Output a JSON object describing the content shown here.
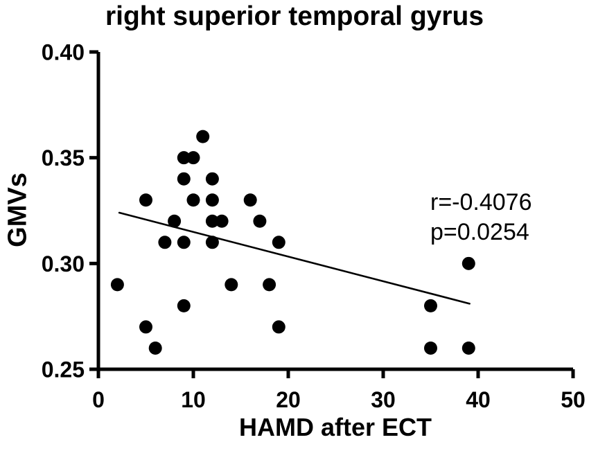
{
  "figure": {
    "background": "#ffffff",
    "ink_color": "#000000"
  },
  "chart_data": {
    "type": "scatter",
    "title": "right superior temporal gyrus",
    "xlabel": "HAMD after ECT",
    "ylabel": "GMVs",
    "xlim": [
      0,
      50
    ],
    "ylim": [
      0.25,
      0.4
    ],
    "xticks": [
      0,
      10,
      20,
      30,
      40,
      50
    ],
    "xtick_labels": [
      "0",
      "10",
      "20",
      "30",
      "40",
      "50"
    ],
    "yticks": [
      0.25,
      0.3,
      0.35,
      0.4
    ],
    "ytick_labels": [
      "0.25",
      "0.30",
      "0.35",
      "0.40"
    ],
    "grid": false,
    "legend": "none",
    "marker": {
      "shape": "circle",
      "color": "#000000"
    },
    "points": [
      [
        2,
        0.29
      ],
      [
        5,
        0.33
      ],
      [
        5,
        0.27
      ],
      [
        6,
        0.26
      ],
      [
        7,
        0.31
      ],
      [
        8,
        0.32
      ],
      [
        9,
        0.35
      ],
      [
        9,
        0.34
      ],
      [
        9,
        0.31
      ],
      [
        9,
        0.28
      ],
      [
        10,
        0.35
      ],
      [
        10,
        0.33
      ],
      [
        11,
        0.36
      ],
      [
        12,
        0.34
      ],
      [
        12,
        0.33
      ],
      [
        12,
        0.32
      ],
      [
        12,
        0.31
      ],
      [
        13,
        0.32
      ],
      [
        14,
        0.29
      ],
      [
        16,
        0.33
      ],
      [
        17,
        0.32
      ],
      [
        18,
        0.29
      ],
      [
        19,
        0.31
      ],
      [
        19,
        0.27
      ],
      [
        35,
        0.28
      ],
      [
        35,
        0.26
      ],
      [
        39,
        0.3
      ],
      [
        39,
        0.26
      ]
    ],
    "trendline": {
      "x1": 2.2,
      "y1": 0.324,
      "x2": 39.1,
      "y2": 0.281
    },
    "annotation": {
      "line1": "r=-0.4076",
      "line2": "p=0.0254"
    }
  }
}
